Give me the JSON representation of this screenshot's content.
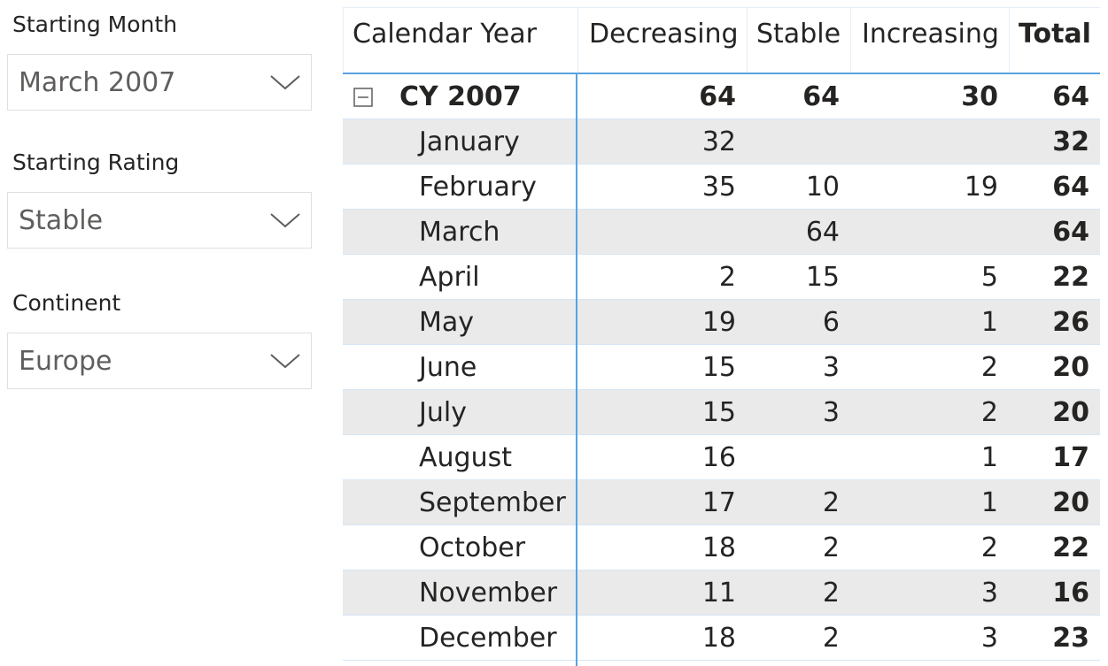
{
  "slicers": [
    {
      "label": "Starting Month",
      "value": "March 2007"
    },
    {
      "label": "Starting Rating",
      "value": "Stable"
    },
    {
      "label": "Continent",
      "value": "Europe"
    }
  ],
  "matrix": {
    "columns": [
      "Calendar Year",
      "Decreasing",
      "Stable",
      "Increasing",
      "Total"
    ],
    "group": {
      "label": "CY 2007",
      "values": [
        "64",
        "64",
        "30",
        "64"
      ]
    },
    "rows": [
      {
        "label": "January",
        "values": [
          "32",
          "",
          "",
          "32"
        ]
      },
      {
        "label": "February",
        "values": [
          "35",
          "10",
          "19",
          "64"
        ]
      },
      {
        "label": "March",
        "values": [
          "",
          "64",
          "",
          "64"
        ]
      },
      {
        "label": "April",
        "values": [
          "2",
          "15",
          "5",
          "22"
        ]
      },
      {
        "label": "May",
        "values": [
          "19",
          "6",
          "1",
          "26"
        ]
      },
      {
        "label": "June",
        "values": [
          "15",
          "3",
          "2",
          "20"
        ]
      },
      {
        "label": "July",
        "values": [
          "15",
          "3",
          "2",
          "20"
        ]
      },
      {
        "label": "August",
        "values": [
          "16",
          "",
          "1",
          "17"
        ]
      },
      {
        "label": "September",
        "values": [
          "17",
          "2",
          "1",
          "20"
        ]
      },
      {
        "label": "October",
        "values": [
          "18",
          "2",
          "2",
          "22"
        ]
      },
      {
        "label": "November",
        "values": [
          "11",
          "2",
          "3",
          "16"
        ]
      },
      {
        "label": "December",
        "values": [
          "18",
          "2",
          "3",
          "23"
        ]
      }
    ]
  },
  "colors": {
    "accent_border": "#5aa3e0",
    "row_shade": "#eaeaea"
  },
  "icons": {
    "dropdown": "chevron-down-icon",
    "collapse": "collapse-minus-icon"
  }
}
